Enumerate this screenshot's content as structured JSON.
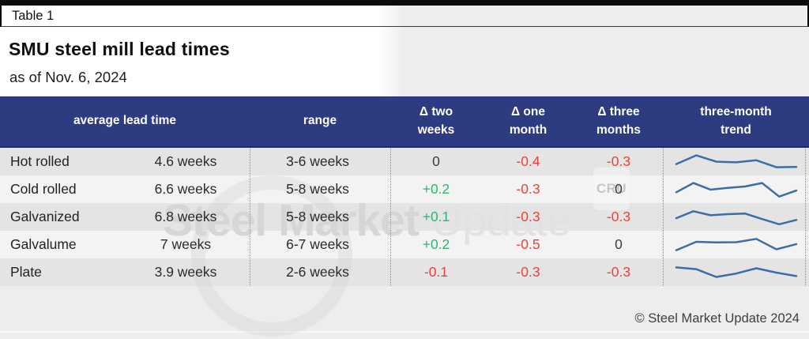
{
  "masthead": {
    "tag": "Table 1",
    "title": "SMU steel mill lead times",
    "subtitle": "as of Nov. 6, 2024"
  },
  "footer": {
    "copyright": "© Steel Market Update 2024"
  },
  "watermark": {
    "bold": "Steel Market",
    "light": "Update",
    "badge": "CRU"
  },
  "colors": {
    "header_bg": "#2d3c80",
    "positive": "#2eb56d",
    "negative": "#ef4136",
    "neutral": "#3d3d3d",
    "sparkline": "#3c6da6",
    "top_bar": "#0c0c0c"
  },
  "chart_data": {
    "type": "table",
    "title": "SMU steel mill lead times",
    "as_of": "as of Nov. 6, 2024",
    "headers": {
      "lead": "average lead time",
      "range": "range",
      "d2w": "Δ two\nweeks",
      "d1m": "Δ one\nmonth",
      "d3m": "Δ three\nmonths",
      "trend": "three-month\ntrend"
    },
    "rows": [
      {
        "product": "Hot rolled",
        "avg": "4.6 weeks",
        "range": "3-6 weeks",
        "d2w": "0",
        "d1m": "-0.4",
        "d3m": "-0.3",
        "trend": [
          0.38,
          0.88,
          0.52,
          0.48,
          0.6,
          0.2,
          0.22
        ]
      },
      {
        "product": "Cold rolled",
        "avg": "6.6 weeks",
        "range": "5-8 weeks",
        "d2w": "+0.2",
        "d1m": "-0.3",
        "d3m": "0",
        "trend": [
          0.35,
          0.88,
          0.5,
          0.6,
          0.68,
          0.88,
          0.1,
          0.45
        ]
      },
      {
        "product": "Galvanized",
        "avg": "6.8 weeks",
        "range": "5-8 weeks",
        "d2w": "+0.1",
        "d1m": "-0.3",
        "d3m": "-0.3",
        "trend": [
          0.45,
          0.85,
          0.62,
          0.68,
          0.72,
          0.4,
          0.1,
          0.35
        ]
      },
      {
        "product": "Galvalume",
        "avg": "7 weeks",
        "range": "6-7 weeks",
        "d2w": "+0.2",
        "d1m": "-0.5",
        "d3m": "0",
        "trend": [
          0.2,
          0.68,
          0.65,
          0.66,
          0.85,
          0.25,
          0.55
        ]
      },
      {
        "product": "Plate",
        "avg": "3.9 weeks",
        "range": "2-6 weeks",
        "d2w": "-0.1",
        "d1m": "-0.3",
        "d3m": "-0.3",
        "trend": [
          0.8,
          0.7,
          0.25,
          0.45,
          0.75,
          0.5,
          0.3
        ]
      }
    ]
  }
}
